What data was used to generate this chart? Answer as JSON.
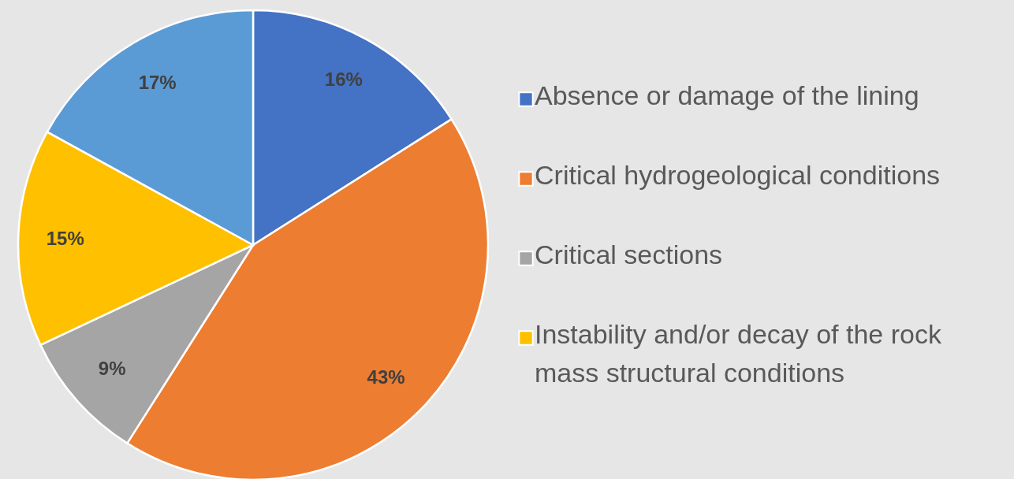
{
  "chart_data": {
    "type": "pie",
    "categories": [
      "Absence or damage of the lining",
      "Critical hydrogeological conditions",
      "Critical sections",
      "Instability and/or decay of the rock mass structural conditions",
      null
    ],
    "values": [
      16,
      43,
      9,
      15,
      17
    ],
    "colors": [
      "#4472c4",
      "#ed7d31",
      "#a5a5a5",
      "#ffc000",
      "#5b9bd5"
    ],
    "value_labels": [
      "16%",
      "43%",
      "9%",
      "15%",
      "17%"
    ],
    "legend": "right"
  }
}
